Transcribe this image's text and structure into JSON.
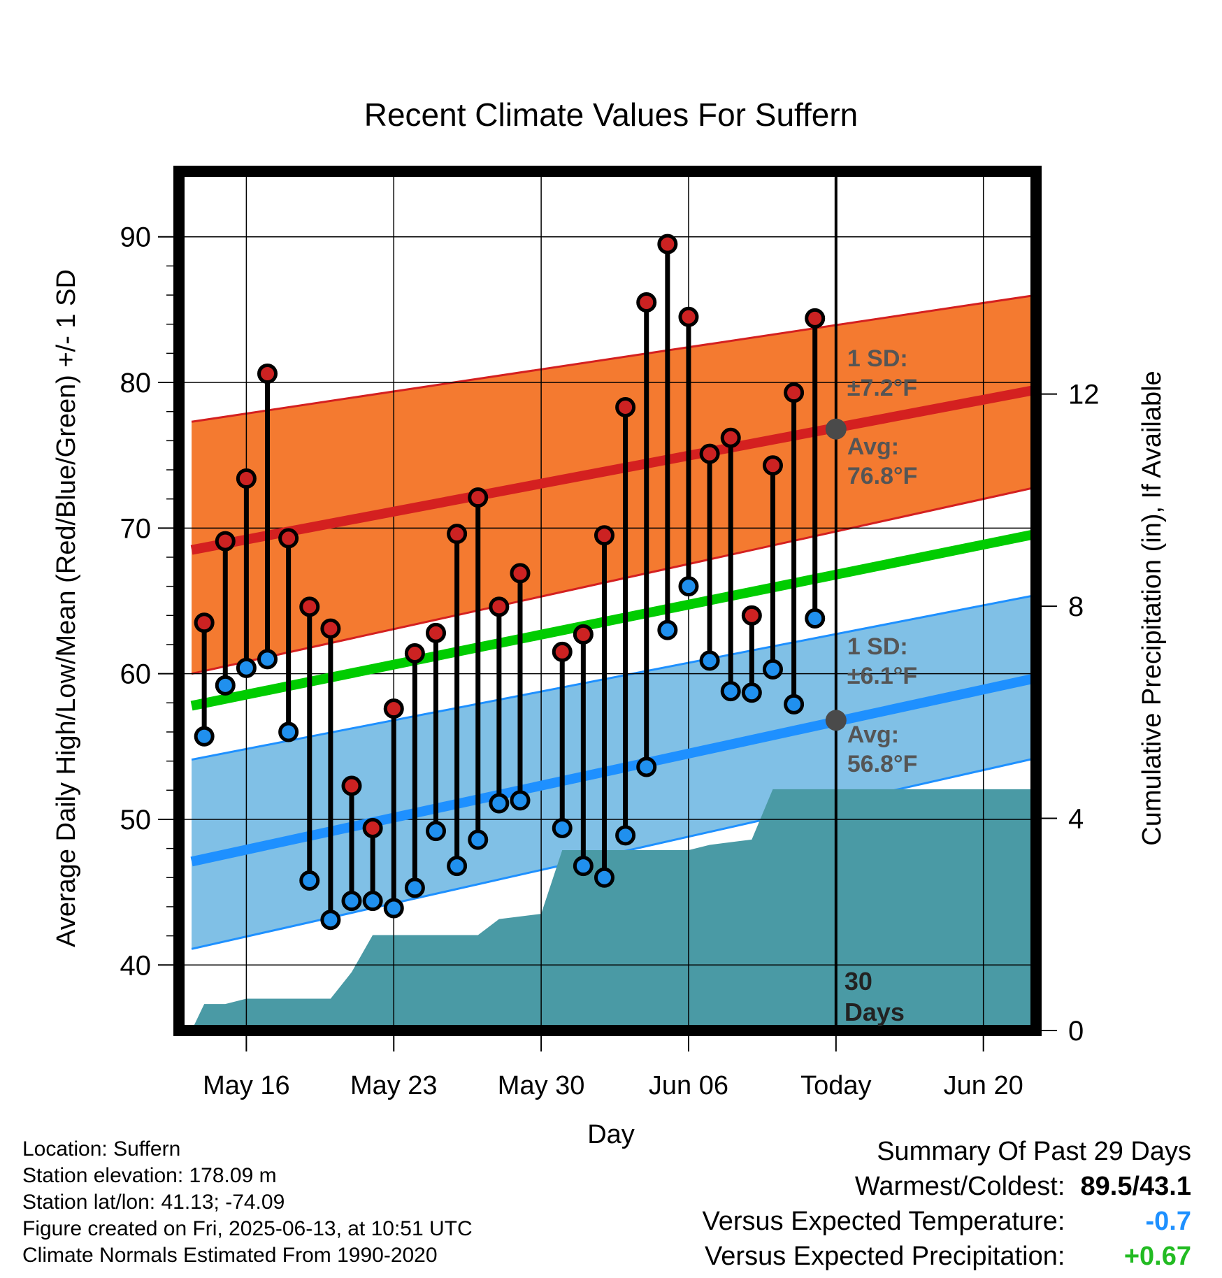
{
  "chart_data": {
    "type": "line",
    "title": "Recent Climate Values For Suffern",
    "xlabel": "Day",
    "ylabel_left": "Average Daily High/Low/Mean (Red/Blue/Green) +/- 1 SD",
    "ylabel_right": "Cumulative Precipitation (in), If Available",
    "x_tick_labels": [
      "May 16",
      "May 23",
      "May 30",
      "Jun 06",
      "Today",
      "Jun 20"
    ],
    "x_tick_days": [
      -28,
      -21,
      -14,
      -7,
      0,
      7
    ],
    "x_range_days": [
      -31.2,
      9.5
    ],
    "ylim": [
      35.5,
      94.5
    ],
    "y_ticks": [
      40,
      50,
      60,
      70,
      80,
      90
    ],
    "y2lim": [
      0,
      16.2
    ],
    "y2_ticks": [
      0,
      4,
      8,
      12
    ],
    "grid": true,
    "days": [
      -30,
      -29,
      -28,
      -27,
      -26,
      -25,
      -24,
      -23,
      -22,
      -21,
      -20,
      -19,
      -18,
      -17,
      -16,
      -15,
      -14,
      -13,
      -12,
      -11,
      -10,
      -9,
      -8,
      -7,
      -6,
      -5,
      -4,
      -3,
      -2,
      -1
    ],
    "observed_high": [
      63.5,
      69.1,
      73.4,
      80.6,
      69.3,
      64.6,
      63.1,
      52.3,
      49.4,
      57.6,
      61.4,
      62.8,
      69.6,
      72.1,
      64.6,
      66.9,
      null,
      61.5,
      62.7,
      69.5,
      78.3,
      85.5,
      89.5,
      84.5,
      75.1,
      76.2,
      64.0,
      74.3,
      79.3,
      84.4
    ],
    "observed_low": [
      55.7,
      59.2,
      60.4,
      61.0,
      56.0,
      45.8,
      43.1,
      44.4,
      44.4,
      43.9,
      45.3,
      49.2,
      46.8,
      48.6,
      51.1,
      51.3,
      null,
      49.4,
      46.8,
      46.0,
      48.9,
      53.6,
      63.0,
      66.0,
      60.9,
      58.8,
      58.7,
      60.3,
      57.9,
      63.8
    ],
    "normal_high": {
      "start": 68.5,
      "end": 79.5
    },
    "normal_low": {
      "start": 47.1,
      "end": 59.7
    },
    "normal_mean": {
      "start": 57.8,
      "end": 69.6
    },
    "high_sd_band": {
      "upper_start": 77.3,
      "upper_end": 86.0,
      "lower_start": 60.0,
      "lower_end": 72.8
    },
    "low_sd_band": {
      "upper_start": 54.1,
      "upper_end": 65.4,
      "lower_start": 41.1,
      "lower_end": 54.2
    },
    "precip_cumulative": {
      "days": [
        -30.6,
        -30.0,
        -29.0,
        -28.0,
        -27.0,
        -26.0,
        -25.0,
        -24.0,
        -23.0,
        -22.0,
        -21.0,
        -20.0,
        -19.0,
        -18.0,
        -17.0,
        -16.0,
        -15.0,
        -14.0,
        -13.0,
        -12.0,
        -11.0,
        -10.0,
        -9.0,
        -8.0,
        -7.0,
        -6.0,
        -5.0,
        -4.0,
        -3.0,
        -2.0,
        -1.0,
        9.5
      ],
      "values": [
        0.0,
        0.5,
        0.5,
        0.6,
        0.6,
        0.6,
        0.6,
        0.6,
        1.1,
        1.8,
        1.8,
        1.8,
        1.8,
        1.8,
        1.8,
        2.1,
        2.15,
        2.2,
        3.4,
        3.4,
        3.4,
        3.4,
        3.4,
        3.4,
        3.4,
        3.5,
        3.55,
        3.6,
        4.55,
        4.55,
        4.55,
        4.55
      ]
    },
    "annotations": {
      "high_sd": [
        "1 SD:",
        "±7.2°F"
      ],
      "high_avg": [
        "Avg:",
        "76.8°F"
      ],
      "low_sd": [
        "1 SD:",
        "±6.1°F"
      ],
      "low_avg": [
        "Avg:",
        "56.8°F"
      ],
      "today_avg_high": 76.8,
      "today_avg_low": 56.8,
      "window": [
        "30",
        "Days"
      ]
    },
    "colors": {
      "high_band": "#f47a30",
      "high_line": "#d42020",
      "low_band": "#80c0e6",
      "low_line": "#1e90ff",
      "mean_line": "#00cc00",
      "precip_fill": "#4a9aa5",
      "high_marker": "#cc2222",
      "low_marker": "#2090ee",
      "annotation": "#555555"
    }
  },
  "footer": {
    "location": "Location: Suffern",
    "elevation": "Station elevation: 178.09 m",
    "latlon": "Station lat/lon: 41.13; -74.09",
    "created": "Figure created on Fri, 2025-06-13, at 10:51 UTC",
    "normals": "Climate Normals Estimated From 1990-2020"
  },
  "summary": {
    "title": "Summary Of Past 29 Days",
    "warmest_label": "Warmest/Coldest:",
    "warmest_value": "89.5/43.1",
    "temp_label": "Versus Expected Temperature:",
    "temp_value": "-0.7",
    "temp_color": "#1e90ff",
    "precip_label": "Versus Expected Precipitation:",
    "precip_value": "+0.67",
    "precip_color": "#22bb22"
  }
}
